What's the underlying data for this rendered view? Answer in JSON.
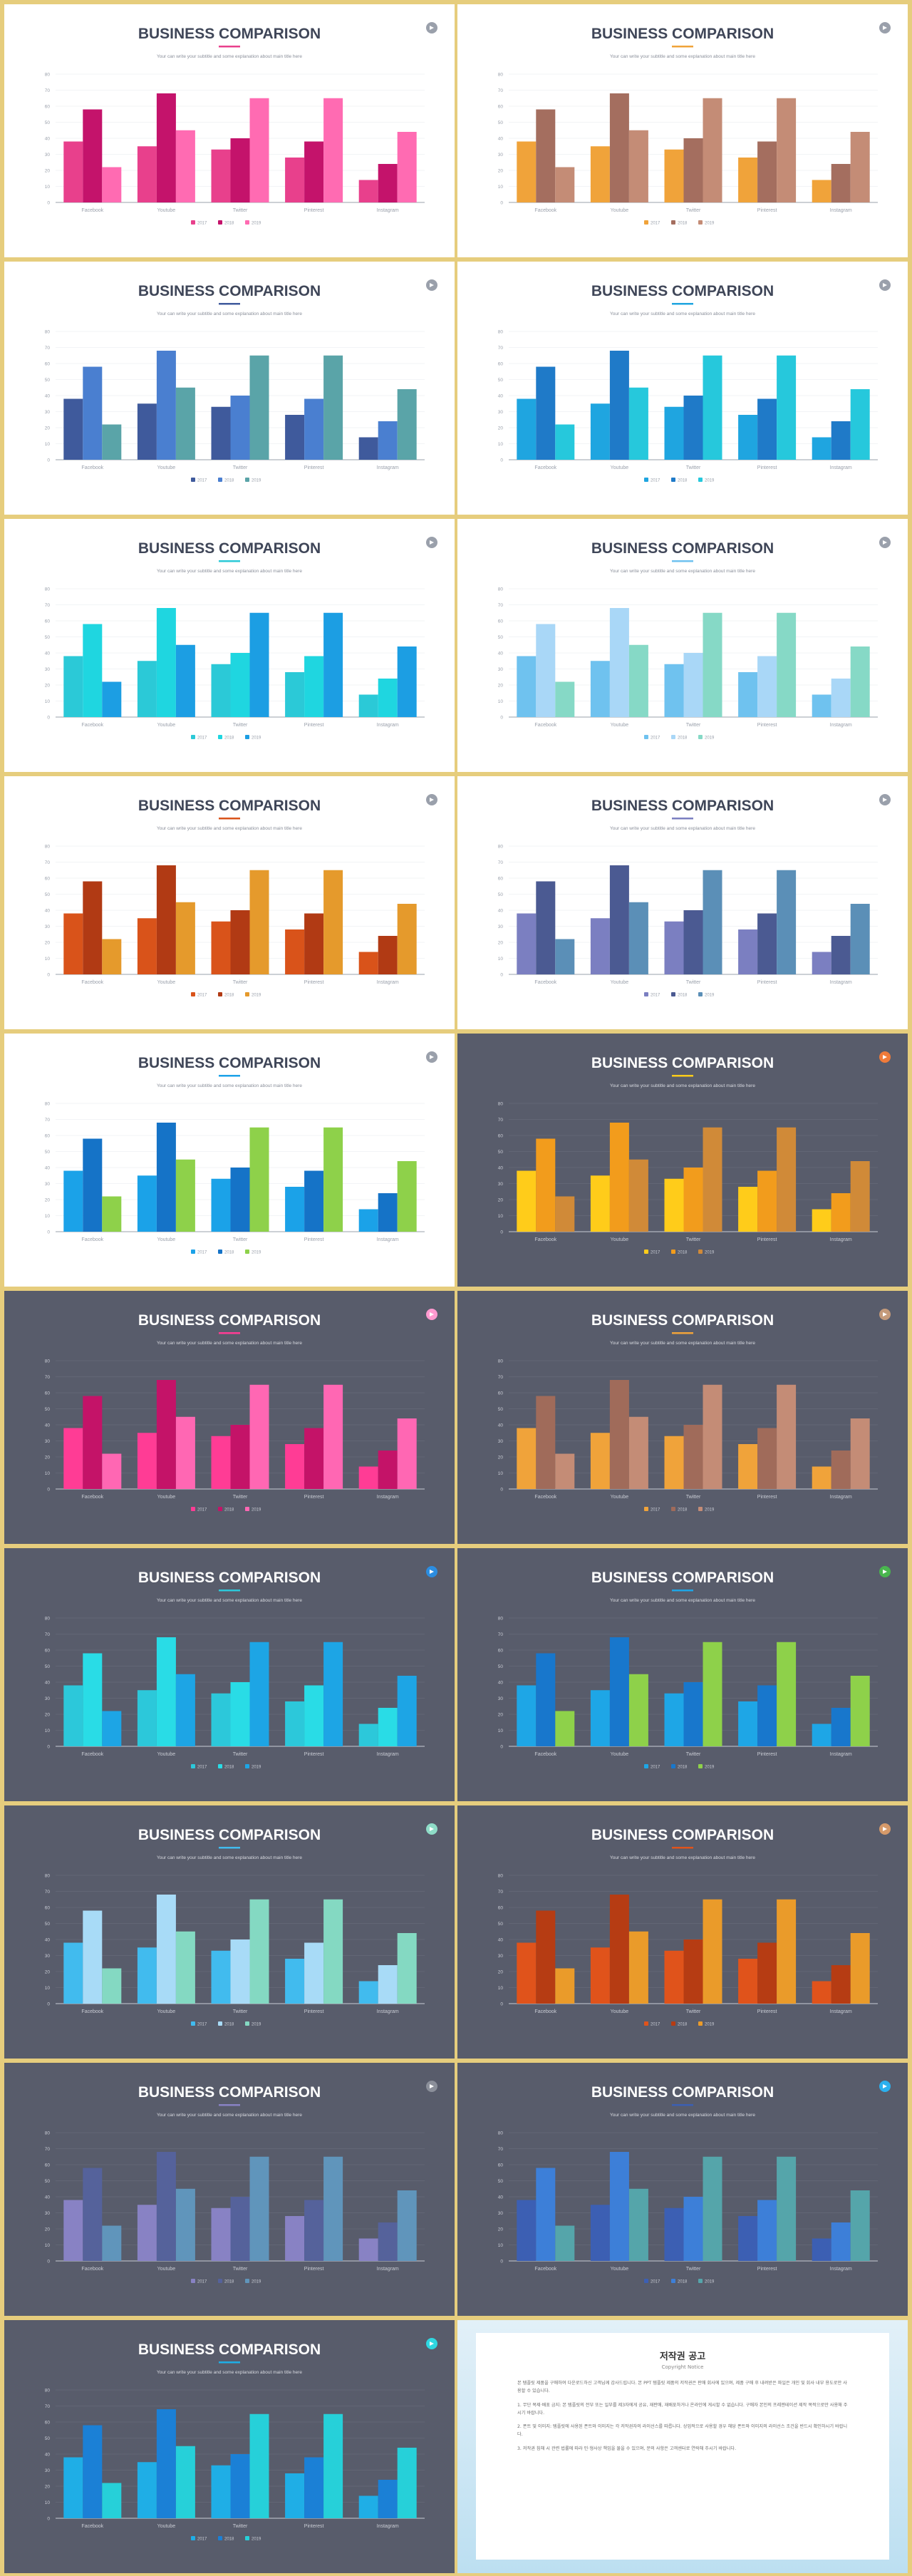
{
  "slide_title": "BUSINESS COMPARISON",
  "slide_subtitle": "Your can write your subtitle and some explanation about main title here",
  "chart_data": {
    "type": "bar",
    "categories": [
      "Facebook",
      "Youtube",
      "Twitter",
      "Pinterest",
      "Instagram"
    ],
    "series": [
      {
        "name": "2017",
        "values": [
          38,
          35,
          33,
          28,
          14
        ]
      },
      {
        "name": "2018",
        "values": [
          58,
          68,
          40,
          38,
          24
        ]
      },
      {
        "name": "2019",
        "values": [
          22,
          45,
          65,
          65,
          44
        ]
      }
    ],
    "ylim": [
      0,
      80
    ],
    "yticks": [
      "0",
      "10",
      "20",
      "30",
      "40",
      "50",
      "60",
      "70",
      "80"
    ],
    "legend": [
      "2017",
      "2018",
      "2019"
    ],
    "legend_position": "bottom-center"
  },
  "slides": [
    {
      "theme": "light",
      "colors": [
        "#e8408c",
        "#c4136b",
        "#ff6bb2"
      ],
      "badge": "#9aa0ab"
    },
    {
      "theme": "light",
      "colors": [
        "#f0a33a",
        "#a46e5f",
        "#c48c76"
      ],
      "badge": "#9aa0ab"
    },
    {
      "theme": "light",
      "colors": [
        "#3f5a9c",
        "#4a7fd0",
        "#5aa4a8"
      ],
      "badge": "#9aa0ab"
    },
    {
      "theme": "light",
      "colors": [
        "#1fa5e0",
        "#1f7ac8",
        "#26c8dc"
      ],
      "badge": "#9aa0ab"
    },
    {
      "theme": "light",
      "colors": [
        "#2bc9d7",
        "#1fd6e0",
        "#1c9ee3"
      ],
      "badge": "#9aa0ab"
    },
    {
      "theme": "light",
      "colors": [
        "#6fc2ef",
        "#a9d7f7",
        "#86d9c6"
      ],
      "badge": "#9aa0ab"
    },
    {
      "theme": "light",
      "colors": [
        "#d9531a",
        "#b13a14",
        "#e59a2c"
      ],
      "badge": "#9aa0ab"
    },
    {
      "theme": "light",
      "colors": [
        "#7b7fc1",
        "#4b5a92",
        "#5b8fb7"
      ],
      "badge": "#9aa0ab"
    },
    {
      "theme": "light",
      "colors": [
        "#1ba2e8",
        "#1573c7",
        "#8ed14a"
      ],
      "badge": "#9aa0ab"
    },
    {
      "theme": "dark",
      "colors": [
        "#ffcc1a",
        "#f29c1c",
        "#d08a38"
      ],
      "badge": "#f07b3a"
    },
    {
      "theme": "dark",
      "colors": [
        "#ff3c95",
        "#c41368",
        "#ff67b3"
      ],
      "badge": "#ff9ad0"
    },
    {
      "theme": "dark",
      "colors": [
        "#f0a33a",
        "#a06b5a",
        "#c48c76"
      ],
      "badge": "#c49a7a"
    },
    {
      "theme": "dark",
      "colors": [
        "#2cc8da",
        "#29dce6",
        "#1da5e5"
      ],
      "badge": "#2c8de0"
    },
    {
      "theme": "dark",
      "colors": [
        "#1ea6e6",
        "#1877cc",
        "#8ed14a"
      ],
      "badge": "#49b54e"
    },
    {
      "theme": "dark",
      "colors": [
        "#41bbee",
        "#a8dbf7",
        "#84d9c2"
      ],
      "badge": "#8fdcc8"
    },
    {
      "theme": "dark",
      "colors": [
        "#e0531b",
        "#b63c13",
        "#ea9b2a"
      ],
      "badge": "#d69a6a"
    },
    {
      "theme": "dark",
      "colors": [
        "#8882c4",
        "#55629b",
        "#6095bb"
      ],
      "badge": "#8b8f9a"
    },
    {
      "theme": "dark",
      "colors": [
        "#3c5fb3",
        "#3d7fd8",
        "#55a5aa"
      ],
      "badge": "#2bb0ee"
    },
    {
      "theme": "dark",
      "colors": [
        "#1faee6",
        "#1b80d6",
        "#26d0d9"
      ],
      "badge": "#2ed7e0"
    }
  ],
  "copyright": {
    "title": "저작권 공고",
    "subtitle": "Copyright Notice",
    "paragraphs": [
      "본 템플릿 제품을 구매하여 다운로드하신 고객님께 감사드립니다. 본 PPT 템플릿 제품의 저작권은 판매 회사에 있으며, 제품 구매 후 내려받은 파일은 개인 및 회사 내부 용도로만 사용할 수 있습니다.",
      "1. 무단 복제·배포 금지: 본 템플릿의 전부 또는 일부를 제3자에게 공유, 재판매, 재배포하거나 온라인에 게시할 수 없습니다. 구매자 본인의 프레젠테이션 제작 목적으로만 사용해 주시기 바랍니다.",
      "2. 폰트 및 이미지: 템플릿에 사용된 폰트와 이미지는 각 저작권자의 라이선스를 따릅니다. 상업적으로 사용할 경우 해당 폰트와 이미지의 라이선스 조건을 반드시 확인하시기 바랍니다.",
      "3. 저작권 침해 시 관련 법률에 따라 민·형사상 책임을 물을 수 있으며, 문의 사항은 고객센터로 연락해 주시기 바랍니다."
    ]
  }
}
